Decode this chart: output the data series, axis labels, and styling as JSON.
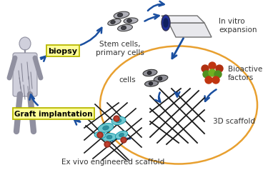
{
  "bg_color": "#ffffff",
  "arrow_color": "#1a4fa0",
  "ellipse_color": "#e8a030",
  "label_bg": "#ffff99",
  "label_border": "#b8b800",
  "figsize": [
    3.75,
    2.53
  ],
  "dpi": 100,
  "labels": {
    "biopsy": "biopsy",
    "stem_cells": "Stem cells,\nprimary cells",
    "in_vitro": "In vitro\nexpansion",
    "cells": "cells",
    "bioactive": "Bioactive\nfactors",
    "scaffold_3d": "3D scaffold",
    "graft": "Graft implantation",
    "ex_vivo": "Ex vivo engineered scaffold"
  }
}
